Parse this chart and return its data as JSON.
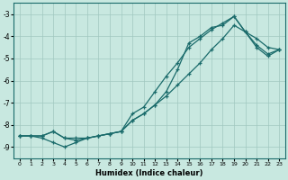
{
  "xlabel": "Humidex (Indice chaleur)",
  "bg_color": "#c8e8e0",
  "grid_color": "#a0c8c0",
  "line_color": "#1a6b6b",
  "marker": "+",
  "xlim": [
    -0.5,
    23.5
  ],
  "ylim": [
    -9.5,
    -2.5
  ],
  "yticks": [
    -9,
    -8,
    -7,
    -6,
    -5,
    -4,
    -3
  ],
  "xticks": [
    0,
    1,
    2,
    3,
    4,
    5,
    6,
    7,
    8,
    9,
    10,
    11,
    12,
    13,
    14,
    15,
    16,
    17,
    18,
    19,
    20,
    21,
    22,
    23
  ],
  "line1_x": [
    0,
    1,
    2,
    3,
    4,
    5,
    6,
    7,
    8,
    9,
    10,
    11,
    12,
    13,
    14,
    15,
    16,
    17,
    18,
    19,
    20,
    21,
    22,
    23
  ],
  "line1_y": [
    -8.5,
    -8.5,
    -8.6,
    -8.8,
    -9.0,
    -8.8,
    -8.6,
    -8.5,
    -8.4,
    -8.3,
    -7.5,
    -7.2,
    -6.5,
    -5.8,
    -5.2,
    -4.5,
    -4.1,
    -3.7,
    -3.4,
    -3.1,
    -3.8,
    -4.1,
    -4.5,
    -4.6
  ],
  "line2_x": [
    0,
    1,
    2,
    3,
    4,
    5,
    6,
    7,
    8,
    9,
    10,
    11,
    12,
    13,
    14,
    15,
    16,
    17,
    18,
    19,
    20,
    21,
    22,
    23
  ],
  "line2_y": [
    -8.5,
    -8.5,
    -8.5,
    -8.3,
    -8.6,
    -8.7,
    -8.6,
    -8.5,
    -8.4,
    -8.3,
    -7.8,
    -7.5,
    -7.1,
    -6.7,
    -6.2,
    -5.7,
    -5.2,
    -4.6,
    -4.1,
    -3.5,
    -3.8,
    -4.4,
    -4.8,
    -4.6
  ],
  "line3_x": [
    0,
    1,
    2,
    3,
    4,
    5,
    6,
    7,
    8,
    9,
    10,
    11,
    12,
    13,
    14,
    15,
    16,
    17,
    18,
    19,
    20,
    21,
    22,
    23
  ],
  "line3_y": [
    -8.5,
    -8.5,
    -8.5,
    -8.3,
    -8.6,
    -8.6,
    -8.6,
    -8.5,
    -8.4,
    -8.3,
    -7.8,
    -7.5,
    -7.1,
    -6.5,
    -5.5,
    -4.3,
    -4.0,
    -3.6,
    -3.5,
    -3.1,
    -3.8,
    -4.5,
    -4.9,
    -4.6
  ]
}
